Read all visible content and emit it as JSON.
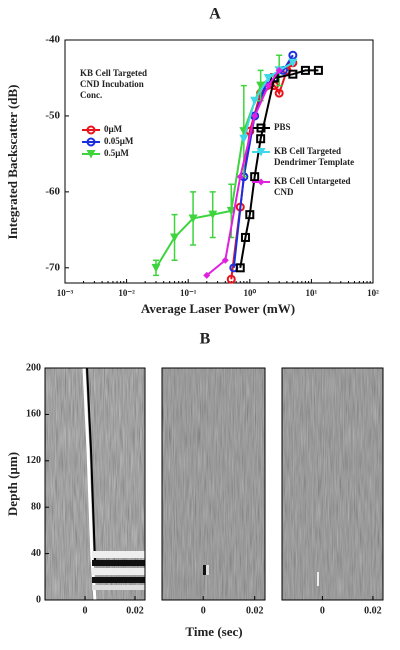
{
  "chart_data": [
    {
      "type": "line",
      "title": "A",
      "xlabel": "Average Laser Power (mW)",
      "ylabel": "Integrated Backscatter (dB)",
      "xscale": "log",
      "xlim": [
        0.001,
        100
      ],
      "xticks": [
        {
          "value": 0.001,
          "label": "10⁻³"
        },
        {
          "value": 0.01,
          "label": "10⁻²"
        },
        {
          "value": 0.1,
          "label": "10⁻¹"
        },
        {
          "value": 1,
          "label": "10⁰"
        },
        {
          "value": 10,
          "label": "10¹"
        },
        {
          "value": 100,
          "label": "10²"
        }
      ],
      "ylim": [
        -72,
        -40
      ],
      "yticks": [
        -70,
        -60,
        -50,
        -40
      ],
      "legend_title": "KB Cell Targeted CND Incubation Conc.",
      "series": [
        {
          "name": "0µM",
          "color": "#e8141c",
          "marker": "circle",
          "x": [
            0.5,
            0.7,
            1.0,
            1.5,
            2.5,
            3,
            4,
            5
          ],
          "values": [
            -71.5,
            -62,
            -52,
            -47,
            -46,
            -47,
            -44,
            -43
          ]
        },
        {
          "name": "0.05µM",
          "color": "#1a2fe0",
          "marker": "circle",
          "x": [
            0.55,
            0.8,
            1.2,
            1.8,
            2.5,
            3.5,
            5
          ],
          "values": [
            -70,
            -58,
            -50,
            -46,
            -45,
            -44,
            -42
          ]
        },
        {
          "name": "0.5µM",
          "color": "#3ed43e",
          "marker": "triangle",
          "x": [
            0.03,
            0.06,
            0.12,
            0.25,
            0.5,
            0.8,
            1.5,
            3
          ],
          "values": [
            -70,
            -66,
            -63.5,
            -63,
            -62.5,
            -52,
            -46,
            -44
          ],
          "errors": [
            1,
            3,
            3.5,
            3,
            3.5,
            6,
            2,
            2
          ]
        },
        {
          "name": "PBS",
          "color": "#000000",
          "marker": "square",
          "x": [
            0.7,
            0.85,
            1.0,
            1.2,
            1.5,
            2.5,
            5,
            8,
            13
          ],
          "values": [
            -70,
            -66,
            -63,
            -58,
            -53,
            -45,
            -44.5,
            -44,
            -44
          ]
        },
        {
          "name": "KB Cell Targeted Dendrimer Template",
          "color": "#3fd8e8",
          "marker": "triangle",
          "x": [
            0.8,
            1.2,
            2,
            3,
            5
          ],
          "values": [
            -53,
            -48,
            -45,
            -44,
            -43
          ]
        },
        {
          "name": "KB Cell Untargeted CND",
          "color": "#e020e0",
          "marker": "diamond",
          "x": [
            0.2,
            0.4,
            0.7,
            1.2,
            2,
            3
          ],
          "values": [
            -71,
            -69,
            -58,
            -50,
            -46,
            -44
          ]
        }
      ]
    },
    {
      "type": "image",
      "title": "B",
      "xlabel": "Time (sec)",
      "ylabel": "Depth (µm)",
      "xlim": [
        -0.016,
        0.024
      ],
      "xticks": [
        0,
        0.02
      ],
      "ylim": [
        0,
        200
      ],
      "yticks": [
        0,
        40,
        80,
        120,
        160,
        200
      ]
    }
  ]
}
